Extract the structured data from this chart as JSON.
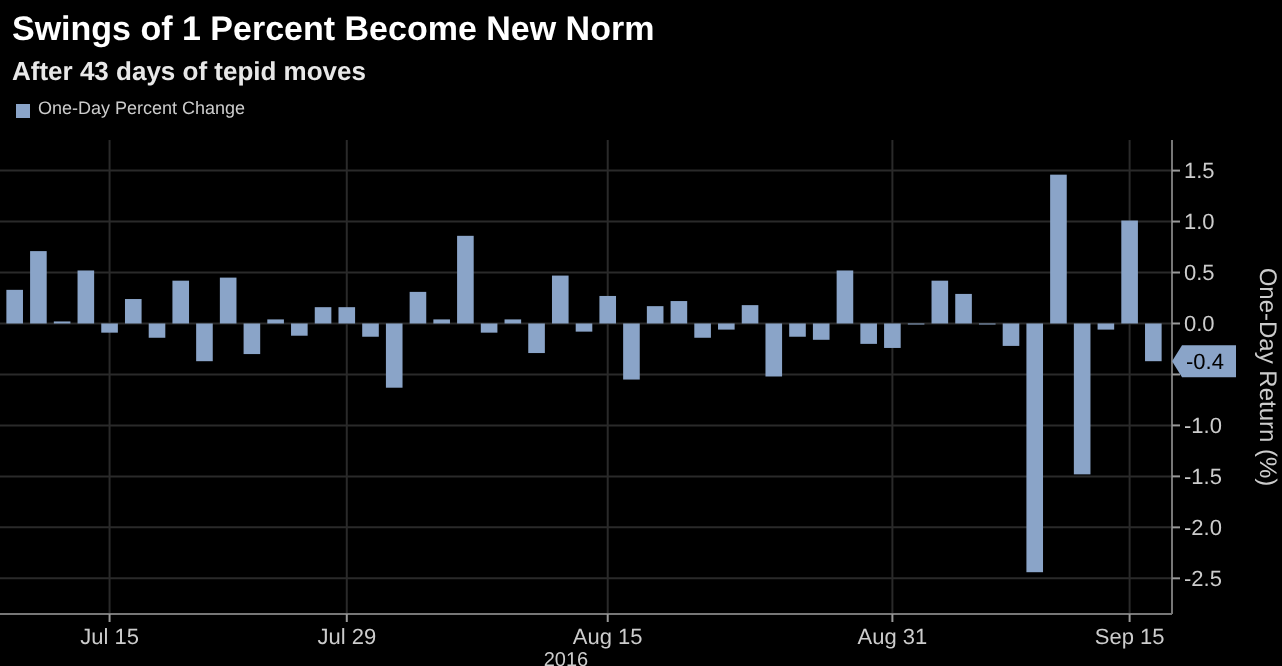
{
  "chart_data": {
    "type": "bar",
    "title": "Swings of 1 Percent Become New Norm",
    "subtitle": "After 43 days of tepid moves",
    "xlabel": "2016",
    "ylabel": "One-Day Return (%)",
    "categories": [
      null,
      null,
      null,
      null,
      "Jul 15",
      null,
      null,
      null,
      null,
      null,
      null,
      null,
      null,
      null,
      "Jul 29",
      null,
      null,
      null,
      null,
      null,
      null,
      null,
      null,
      null,
      null,
      "Aug 15",
      null,
      null,
      null,
      null,
      null,
      null,
      null,
      null,
      null,
      null,
      null,
      "Aug 31",
      null,
      null,
      null,
      null,
      null,
      null,
      null,
      null,
      null,
      "Sep 15",
      null
    ],
    "series": [
      {
        "name": "One-Day Percent Change",
        "color": "#8aa4c8",
        "values": [
          0.33,
          0.71,
          0.02,
          0.52,
          -0.09,
          0.24,
          -0.14,
          0.42,
          -0.37,
          0.45,
          -0.3,
          0.04,
          -0.12,
          0.16,
          0.16,
          -0.13,
          -0.63,
          0.31,
          0.04,
          0.86,
          -0.09,
          0.04,
          -0.29,
          0.47,
          -0.08,
          0.27,
          -0.55,
          0.17,
          0.22,
          -0.14,
          -0.06,
          0.18,
          -0.52,
          -0.13,
          -0.16,
          0.52,
          -0.2,
          -0.24,
          -0.01,
          0.42,
          0.29,
          -0.01,
          -0.22,
          -2.44,
          1.46,
          -1.48,
          -0.06,
          1.01,
          -0.37
        ]
      }
    ],
    "value_labels": [
      null,
      null,
      null,
      null,
      null,
      null,
      null,
      null,
      null,
      null,
      null,
      null,
      null,
      null,
      null,
      null,
      null,
      null,
      null,
      null,
      null,
      null,
      null,
      null,
      null,
      null,
      null,
      null,
      null,
      null,
      null,
      null,
      null,
      null,
      null,
      null,
      null,
      null,
      null,
      null,
      null,
      null,
      null,
      null,
      null,
      null,
      null,
      null,
      "-0.4"
    ],
    "ylim": [
      -2.85,
      1.8
    ],
    "yticks": [
      1.5,
      {
        "value": 1,
        "label": "1.0"
      },
      0.5,
      {
        "value": 0,
        "label": "0.0"
      },
      {
        "value": -0.5,
        "label": null
      },
      {
        "value": -1,
        "label": "-1.0"
      },
      -1.5,
      {
        "value": -2,
        "label": "-2.0"
      },
      -2.5
    ],
    "grid": true,
    "legend": "top left"
  }
}
